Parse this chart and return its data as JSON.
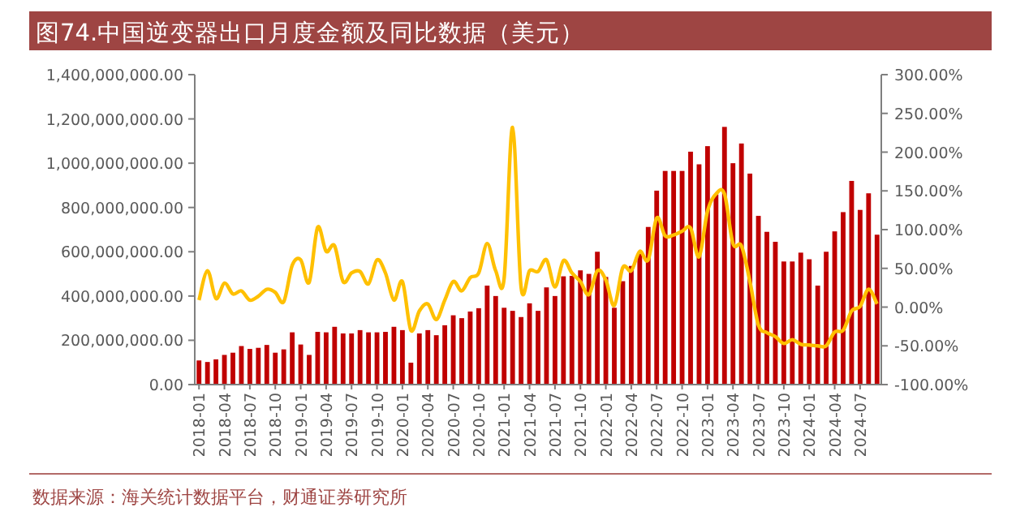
{
  "chart_data": {
    "type": "bar",
    "title": "图74.中国逆变器出口月度金额及同比数据（美元）",
    "annotations": [
      "数据来源：海关统计数据平台，财通证券研究所"
    ],
    "categories": [
      "2018-01",
      null,
      null,
      "2018-04",
      null,
      null,
      "2018-07",
      null,
      null,
      "2018-10",
      null,
      null,
      "2019-01",
      null,
      null,
      "2019-04",
      null,
      null,
      "2019-07",
      null,
      null,
      "2019-10",
      null,
      null,
      "2020-01",
      null,
      null,
      "2020-04",
      null,
      null,
      "2020-07",
      null,
      null,
      "2020-10",
      null,
      null,
      "2021-01",
      null,
      null,
      "2021-04",
      null,
      null,
      "2021-07",
      null,
      null,
      "2021-10",
      null,
      null,
      "2022-01",
      null,
      null,
      "2022-04",
      null,
      null,
      "2022-07",
      null,
      null,
      "2022-10",
      null,
      null,
      "2023-01",
      null,
      null,
      "2023-04",
      null,
      null,
      "2023-07",
      null,
      null,
      "2023-10",
      null,
      null,
      "2024-01",
      null,
      null,
      "2024-04",
      null,
      null,
      "2024-07",
      null,
      null
    ],
    "series": [
      {
        "type": "bar",
        "color": "#c00000",
        "values": [
          109000000,
          102000000,
          114000000,
          134000000,
          144000000,
          174000000,
          161000000,
          166000000,
          179000000,
          144000000,
          159000000,
          236000000,
          181000000,
          134000000,
          238000000,
          236000000,
          261000000,
          231000000,
          231000000,
          246000000,
          236000000,
          236000000,
          238000000,
          261000000,
          246000000,
          99000000,
          231000000,
          246000000,
          223000000,
          268000000,
          313000000,
          300000000,
          330000000,
          345000000,
          447000000,
          400000000,
          347000000,
          333000000,
          305000000,
          367000000,
          333000000,
          439000000,
          400000000,
          489000000,
          491000000,
          516000000,
          500000000,
          600000000,
          486000000,
          347000000,
          467000000,
          536000000,
          591000000,
          712000000,
          876000000,
          965000000,
          965000000,
          965000000,
          1052000000,
          995000000,
          1077000000,
          859000000,
          1164000000,
          1000000000,
          1089000000,
          953000000,
          762000000,
          690000000,
          645000000,
          556000000,
          556000000,
          596000000,
          566000000,
          447000000,
          600000000,
          692000000,
          779000000,
          920000000,
          789000000,
          864000000,
          677000000
        ]
      },
      {
        "type": "line",
        "axis": "y2",
        "color": "#ffc000",
        "values": [
          9,
          47,
          11,
          31,
          17,
          21,
          9,
          14,
          23,
          19,
          7,
          54,
          61,
          32,
          103,
          72,
          79,
          33,
          44,
          46,
          30,
          61,
          44,
          9,
          33,
          -30,
          -5,
          4,
          -16,
          9,
          33,
          21,
          38,
          44,
          82,
          47,
          37,
          232,
          26,
          47,
          46,
          61,
          26,
          60,
          44,
          33,
          16,
          47,
          35,
          2,
          51,
          47,
          72,
          61,
          115,
          92,
          93,
          98,
          102,
          65,
          124,
          146,
          146,
          82,
          79,
          33,
          -23,
          -33,
          -38,
          -47,
          -42,
          -48,
          -49,
          -50,
          -50,
          -32,
          -30,
          -5,
          1,
          23,
          4
        ]
      }
    ],
    "ylim": [
      0,
      1400000000
    ],
    "yticks": [
      {
        "value": 0,
        "label": "0.00"
      },
      {
        "value": 200000000,
        "label": "200,000,000.00"
      },
      {
        "value": 400000000,
        "label": "400,000,000.00"
      },
      {
        "value": 600000000,
        "label": "600,000,000.00"
      },
      {
        "value": 800000000,
        "label": "800,000,000.00"
      },
      {
        "value": 1000000000,
        "label": "1,000,000,000.00"
      },
      {
        "value": 1200000000,
        "label": "1,200,000,000.00"
      },
      {
        "value": 1400000000,
        "label": "1,400,000,000.00"
      }
    ],
    "y2lim": [
      -100,
      300
    ],
    "y2ticks": [
      {
        "value": -100,
        "label": "-100.00%"
      },
      {
        "value": -50,
        "label": "-50.00%"
      },
      {
        "value": 0,
        "label": "0.00%"
      },
      {
        "value": 50,
        "label": "50.00%"
      },
      {
        "value": 100,
        "label": "100.00%"
      },
      {
        "value": 150,
        "label": "150.00%"
      },
      {
        "value": 200,
        "label": "200.00%"
      },
      {
        "value": 250,
        "label": "250.00%"
      },
      {
        "value": 300,
        "label": "300.00%"
      }
    ],
    "marker": "none",
    "line_style": "solid"
  }
}
